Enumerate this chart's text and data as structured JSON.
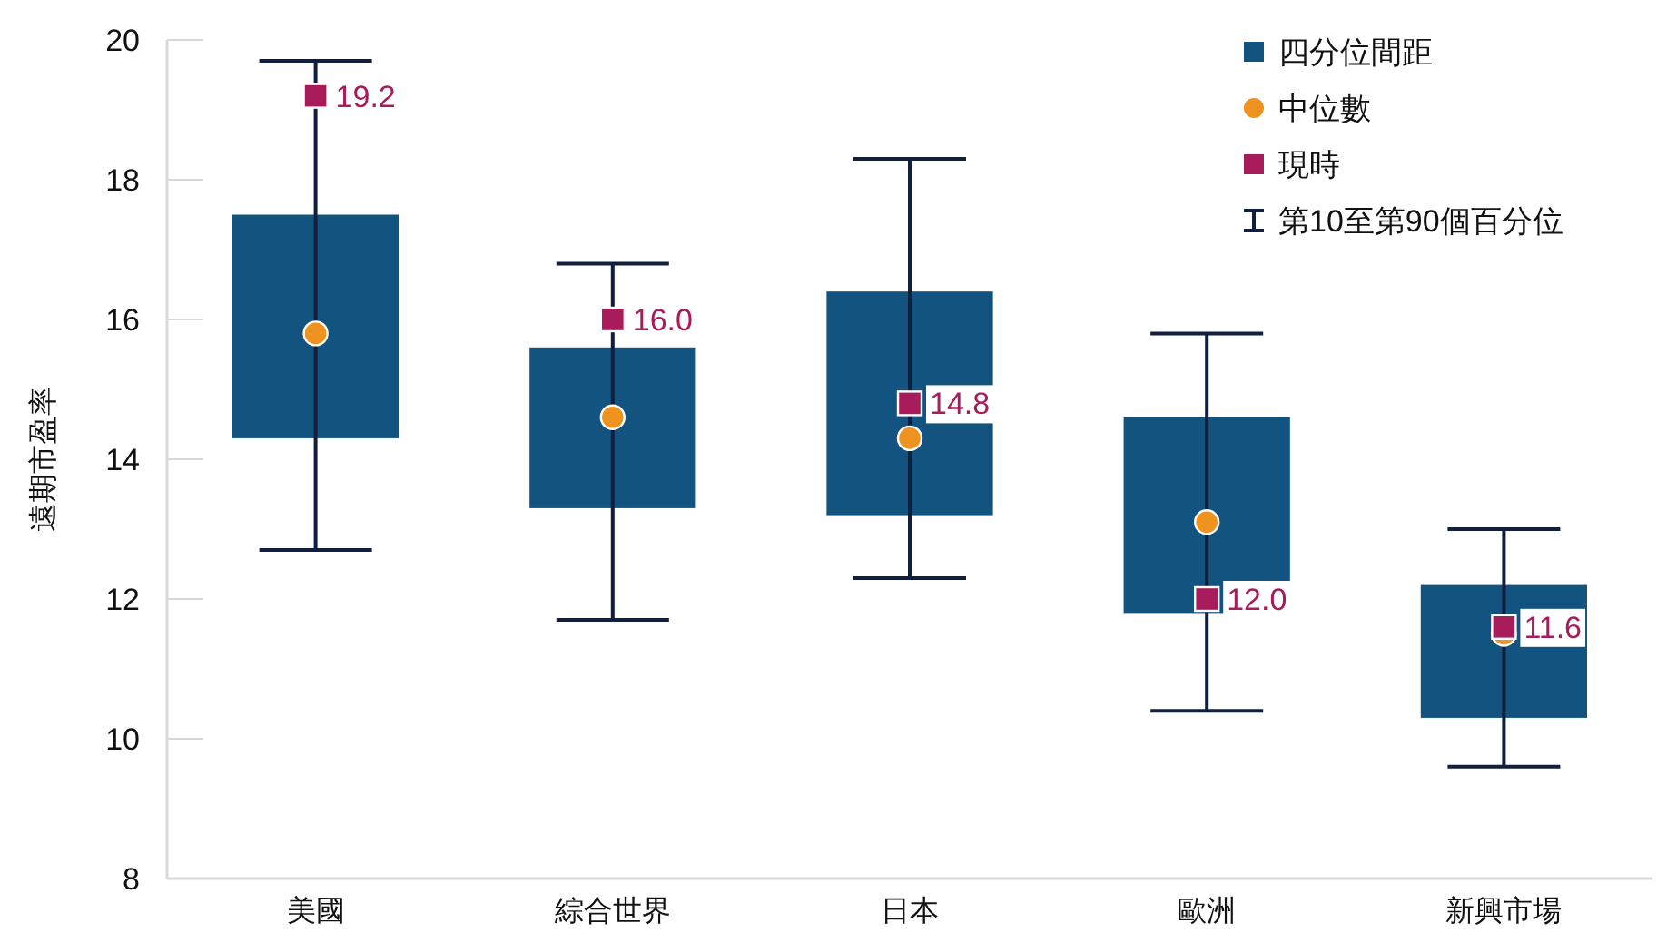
{
  "chart_data": {
    "type": "box",
    "ylabel": "遠期市盈率",
    "categories": [
      "美國",
      "綜合世界",
      "日本",
      "歐洲",
      "新興市場"
    ],
    "ylim": [
      8,
      20
    ],
    "yticks": [
      8,
      10,
      12,
      14,
      16,
      18,
      20
    ],
    "legend": "top right",
    "annotations": [
      "中位數",
      "第10至第90個百分位"
    ],
    "series": [
      {
        "name": "四分位間距",
        "color": "#12537f",
        "boxes": [
          {
            "low": 12.7,
            "q1": 14.3,
            "median": 15.8,
            "q3": 17.5,
            "high": 19.7
          },
          {
            "low": 11.7,
            "q1": 13.3,
            "median": 14.6,
            "q3": 15.6,
            "high": 16.8
          },
          {
            "low": 12.3,
            "q1": 13.2,
            "median": 14.3,
            "q3": 16.4,
            "high": 18.3
          },
          {
            "low": 10.4,
            "q1": 11.8,
            "median": 13.1,
            "q3": 14.6,
            "high": 15.8
          },
          {
            "low": 9.6,
            "q1": 10.3,
            "median": 11.5,
            "q3": 12.2,
            "high": 13.0
          }
        ]
      },
      {
        "type": "scatter",
        "name": "現時",
        "color": "#a81c5b",
        "marker": "square",
        "x": [
          "美國",
          "綜合世界",
          "日本",
          "歐洲",
          "新興市場"
        ],
        "values": [
          19.2,
          16.0,
          14.8,
          12.0,
          11.6
        ],
        "value_labels": [
          "19.2",
          "16.0",
          "14.8",
          "12.0",
          "11.6"
        ]
      }
    ]
  }
}
